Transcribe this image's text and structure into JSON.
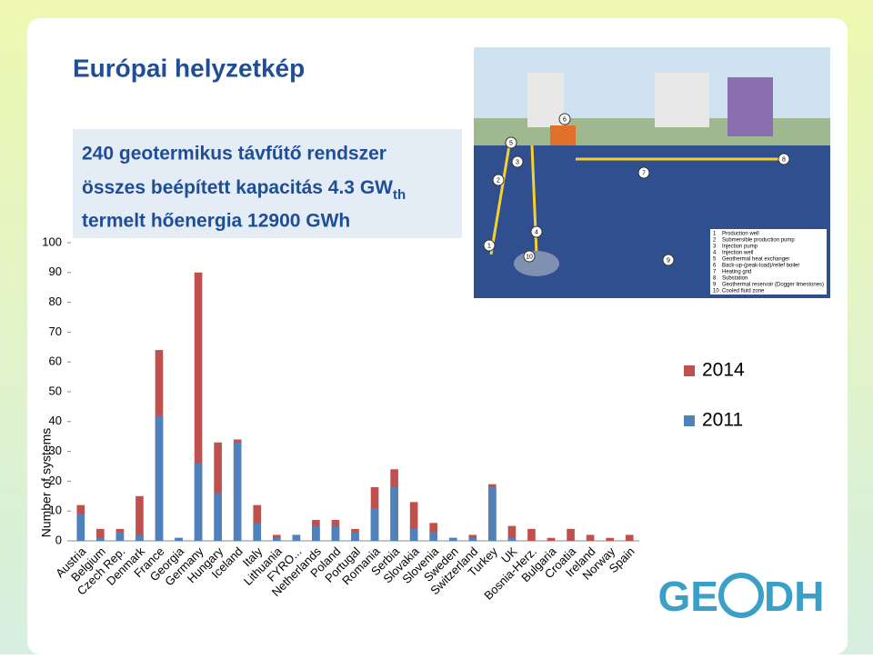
{
  "title": "Európai helyzetkép",
  "info": {
    "lines": [
      "240 geotermikus távfűtő rendszer",
      "összes beépített kapacitás 4.3 GW",
      "termelt hőenergia 12900 GWh"
    ],
    "subscript": "th"
  },
  "diagram": {
    "numbers": [
      "1",
      "2",
      "3",
      "4",
      "5",
      "6",
      "7",
      "8",
      "9",
      "10"
    ],
    "legend": [
      "Production well",
      "Submersible production pump",
      "Injection pump",
      "Injection well",
      "Geothermal heat exchanger",
      "Back-up-(peak-load)/relief boiler",
      "Heating grid",
      "Substation",
      "Geothermal reservoir (Dogger limestones)",
      "Cooled fluid zone"
    ]
  },
  "logo": {
    "left": "GE",
    "right": "DH"
  },
  "chart_data": {
    "type": "bar",
    "y_label": "Number of systems",
    "categories": [
      "Austria",
      "Belgium",
      "Czech Rep.",
      "Denmark",
      "France",
      "Georgia",
      "Germany",
      "Hungary",
      "Iceland",
      "Italy",
      "Lithuania",
      "FYRO...",
      "Netherlands",
      "Poland",
      "Portugal",
      "Romania",
      "Serbia",
      "Slovakia",
      "Slovenia",
      "Sweden",
      "Switzerland",
      "Turkey",
      "UK",
      "Bosnia-Herz.",
      "Bulgaria",
      "Croatia",
      "Ireland",
      "Norway",
      "Spain"
    ],
    "series": [
      {
        "name": "2014",
        "color": "#c0504d",
        "values": [
          12,
          4,
          4,
          15,
          64,
          1,
          90,
          33,
          34,
          12,
          2,
          2,
          7,
          7,
          4,
          18,
          24,
          13,
          6,
          1,
          2,
          19,
          5,
          4,
          1,
          4,
          2,
          1,
          2
        ]
      },
      {
        "name": "2011",
        "color": "#4f81bd",
        "values": [
          9,
          1,
          3,
          2,
          42,
          1,
          26,
          16,
          33,
          6,
          1,
          2,
          5,
          5,
          3,
          11,
          18,
          4,
          3,
          1,
          1,
          18,
          1,
          0,
          0,
          0,
          0,
          0,
          0
        ]
      }
    ],
    "ylim": [
      0,
      100
    ],
    "yticks": [
      0,
      10,
      20,
      30,
      40,
      50,
      60,
      70,
      80,
      90,
      100
    ]
  }
}
